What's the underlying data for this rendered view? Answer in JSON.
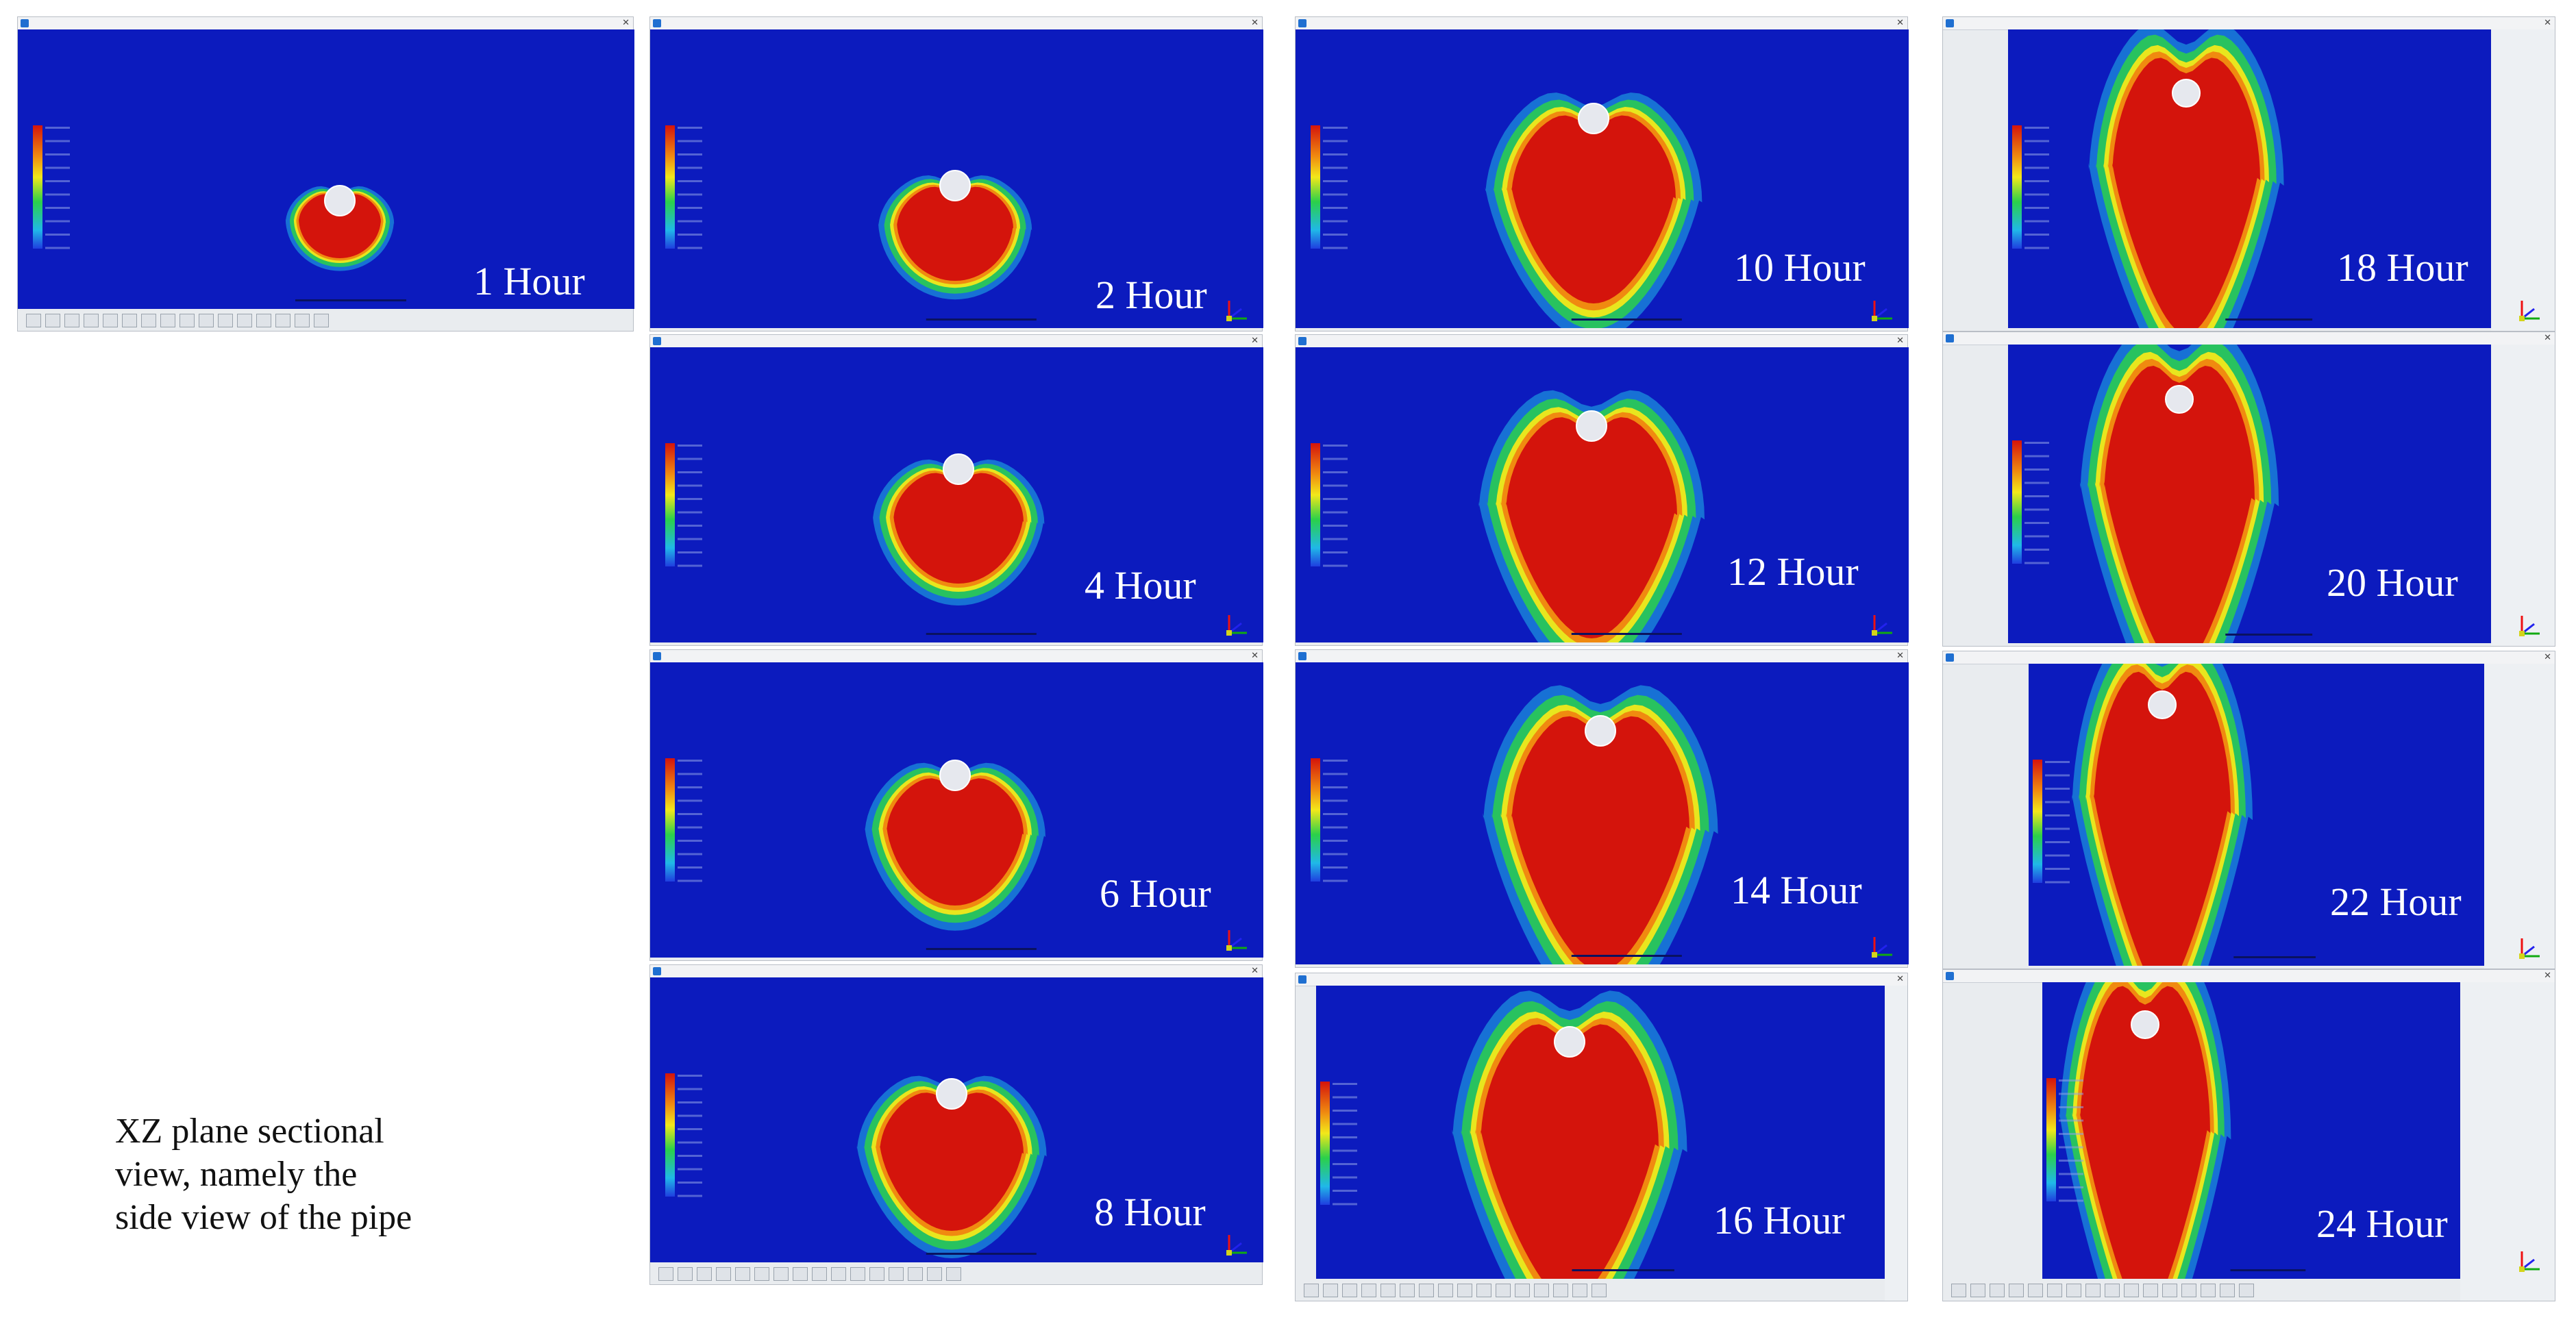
{
  "caption": {
    "line1": "XZ plane sectional",
    "line2": "view, namely the",
    "line3": "side view of the pipe"
  },
  "panels": [
    {
      "label": "1 Hour"
    },
    {
      "label": "2 Hour"
    },
    {
      "label": "4 Hour"
    },
    {
      "label": "6 Hour"
    },
    {
      "label": "8 Hour"
    },
    {
      "label": "10 Hour"
    },
    {
      "label": "12 Hour"
    },
    {
      "label": "14 Hour"
    },
    {
      "label": "16 Hour"
    },
    {
      "label": "18 Hour"
    },
    {
      "label": "20 Hour"
    },
    {
      "label": "22 Hour"
    },
    {
      "label": "24 Hour"
    }
  ],
  "colors": {
    "background_blue": "#0c1bbe",
    "core_red": "#d4140c",
    "orange": "#f08a10",
    "yellow": "#f2e81a",
    "green": "#2bd04a",
    "cyan": "#20b8e8",
    "pipe": "#e6e8ee"
  }
}
